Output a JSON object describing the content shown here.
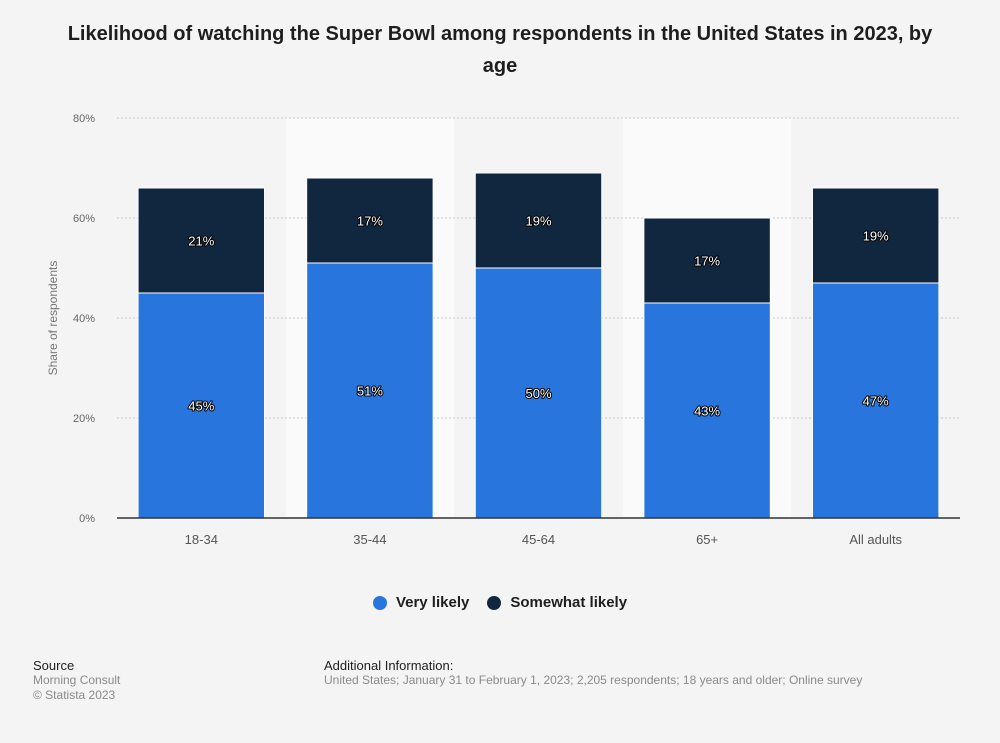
{
  "title": "Likelihood of watching the Super Bowl among respondents in the United States in 2023, by age",
  "legend": [
    {
      "label": "Very likely",
      "color": "#2876dd"
    },
    {
      "label": "Somewhat likely",
      "color": "#112740"
    }
  ],
  "footer": {
    "source_heading": "Source",
    "source_lines": [
      "Morning Consult",
      "© Statista 2023"
    ],
    "info_heading": "Additional Information:",
    "info_text": "United States; January 31 to February 1, 2023; 2,205 respondents; 18 years and older; Online survey"
  },
  "chart_data": {
    "type": "bar",
    "stacked": true,
    "categories": [
      "18-34",
      "35-44",
      "45-64",
      "65+",
      "All adults"
    ],
    "series": [
      {
        "name": "Very likely",
        "values": [
          45,
          51,
          50,
          43,
          47
        ],
        "labels": [
          "45%",
          "51%",
          "50%",
          "43%",
          "47%"
        ],
        "color": "#2876dd"
      },
      {
        "name": "Somewhat likely",
        "values": [
          21,
          17,
          19,
          17,
          19
        ],
        "labels": [
          "21%",
          "17%",
          "19%",
          "17%",
          "19%"
        ],
        "color": "#112740"
      }
    ],
    "xlabel": "",
    "ylabel": "Share of respondents",
    "ylim": [
      0,
      80
    ],
    "yticks": [
      0,
      20,
      40,
      60,
      80
    ],
    "ytick_labels": [
      "0%",
      "20%",
      "40%",
      "60%",
      "80%"
    ],
    "grid": true,
    "legend_position": "bottom"
  }
}
